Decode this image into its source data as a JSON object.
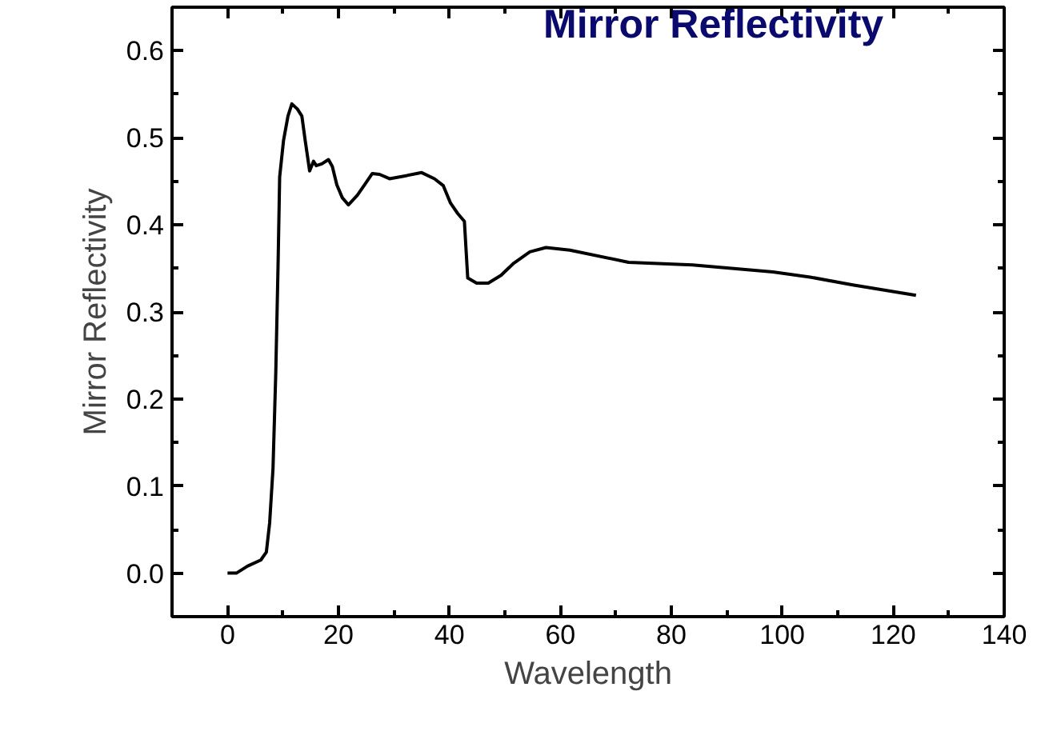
{
  "chart_data": {
    "type": "line",
    "title": "Mirror Reflectivity",
    "xlabel": "Wavelength",
    "ylabel": "Mirror Reflectivity",
    "x": [
      0,
      1.6,
      3.6,
      6.0,
      7.0,
      7.6,
      8.2,
      8.7,
      9.1,
      9.4,
      10.1,
      10.9,
      11.6,
      12.6,
      13.4,
      14.0,
      14.8,
      15.5,
      16.0,
      17.0,
      18.2,
      18.9,
      19.7,
      20.7,
      21.8,
      23.4,
      24.7,
      26.1,
      27.4,
      29.2,
      31.8,
      35.0,
      37.3,
      38.9,
      40.2,
      41.5,
      42.7,
      43.3,
      44.9,
      47.0,
      49.3,
      51.6,
      54.5,
      57.4,
      61.7,
      72.3,
      83.8,
      98.3,
      105.0,
      112.7,
      124.1
    ],
    "series": [
      {
        "color": "#000000",
        "values": [
          0,
          0,
          0.008,
          0.015,
          0.024,
          0.058,
          0.12,
          0.23,
          0.35,
          0.455,
          0.497,
          0.525,
          0.539,
          0.533,
          0.525,
          0.497,
          0.462,
          0.473,
          0.468,
          0.47,
          0.475,
          0.467,
          0.446,
          0.431,
          0.423,
          0.434,
          0.446,
          0.459,
          0.458,
          0.453,
          0.456,
          0.46,
          0.453,
          0.445,
          0.425,
          0.413,
          0.404,
          0.339,
          0.333,
          0.333,
          0.342,
          0.356,
          0.369,
          0.374,
          0.371,
          0.357,
          0.354,
          0.346,
          0.34,
          0.331,
          0.319
        ]
      }
    ],
    "xlim": [
      -10,
      140
    ],
    "ylim": [
      -0.05,
      0.65
    ],
    "xticks": [
      0,
      {
        "value": 10,
        "label": null
      },
      20,
      {
        "value": 30,
        "label": null
      },
      40,
      {
        "value": 50,
        "label": null
      },
      60,
      {
        "value": 70,
        "label": null
      },
      80,
      {
        "value": 90,
        "label": null
      },
      100,
      {
        "value": 110,
        "label": null
      },
      120,
      {
        "value": 130,
        "label": null
      },
      140
    ],
    "yticks": [
      {
        "value": 0,
        "label": "0.0"
      },
      {
        "value": 0.05,
        "label": null
      },
      0.1,
      {
        "value": 0.15,
        "label": null
      },
      0.2,
      {
        "value": 0.25,
        "label": null
      },
      0.3,
      {
        "value": 0.35,
        "label": null
      },
      0.4,
      {
        "value": 0.45,
        "label": null
      },
      0.5,
      {
        "value": 0.55,
        "label": null
      },
      0.6
    ],
    "grid": false,
    "marker": "none",
    "line_style": "solid"
  }
}
